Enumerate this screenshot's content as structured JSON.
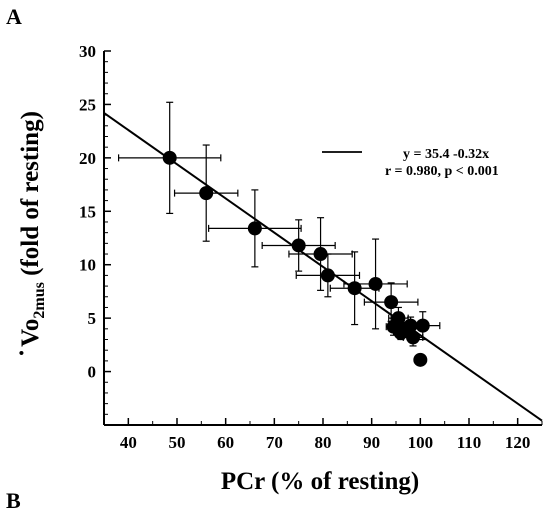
{
  "panel_labels": {
    "top": "A",
    "bottom": "B"
  },
  "chart_data": {
    "type": "scatter",
    "xlabel": "PCr (% of resting)",
    "ylabel": {
      "dot": "·",
      "main": "Vo",
      "subscript": "2mus",
      "rest": " (fold of resting)"
    },
    "xlim": [
      35,
      125
    ],
    "ylim": [
      -5,
      30
    ],
    "xticks": [
      40,
      50,
      60,
      70,
      80,
      90,
      100,
      110,
      120
    ],
    "yticks": [
      0,
      5,
      10,
      15,
      20,
      25,
      30
    ],
    "grid": false,
    "legend": {
      "placement": "top-right",
      "equation": "y = 35.4 -0.32x",
      "stats": "r = 0.980, p < 0.001"
    },
    "regression": {
      "intercept": 35.4,
      "slope": -0.32,
      "x_range": [
        35,
        125
      ]
    },
    "points": [
      {
        "x": 48.5,
        "y": 20.0,
        "xerr": 10.5,
        "yerr": 5.2
      },
      {
        "x": 56.0,
        "y": 16.7,
        "xerr": 6.5,
        "yerr": 4.5
      },
      {
        "x": 66.0,
        "y": 13.4,
        "xerr": 9.5,
        "yerr": 3.6
      },
      {
        "x": 75.0,
        "y": 11.8,
        "xerr": 7.5,
        "yerr": 2.4
      },
      {
        "x": 79.5,
        "y": 11.0,
        "xerr": 6.5,
        "yerr": 3.4
      },
      {
        "x": 81.0,
        "y": 9.0,
        "xerr": 6.5,
        "yerr": 2.0
      },
      {
        "x": 86.5,
        "y": 7.8,
        "xerr": 5.0,
        "yerr": 3.4
      },
      {
        "x": 90.8,
        "y": 8.2,
        "xerr": 6.5,
        "yerr": 4.2
      },
      {
        "x": 94.0,
        "y": 6.5,
        "xerr": 5.5,
        "yerr": 1.8
      },
      {
        "x": 95.5,
        "y": 5.0,
        "xerr": 2.0,
        "yerr": 1.0
      },
      {
        "x": 94.5,
        "y": 4.2,
        "xerr": 1.5,
        "yerr": 0.8
      },
      {
        "x": 96.0,
        "y": 3.6,
        "xerr": 1.0,
        "yerr": 0.6
      },
      {
        "x": 97.0,
        "y": 4.0,
        "xerr": 1.0,
        "yerr": 0.6
      },
      {
        "x": 98.5,
        "y": 3.2,
        "xerr": 2.0,
        "yerr": 0.8
      },
      {
        "x": 98.0,
        "y": 4.3,
        "xerr": 1.5,
        "yerr": 0.8
      },
      {
        "x": 100.5,
        "y": 4.3,
        "xerr": 3.5,
        "yerr": 1.3
      },
      {
        "x": 100.0,
        "y": 1.1,
        "xerr": 0,
        "yerr": 0
      }
    ]
  }
}
